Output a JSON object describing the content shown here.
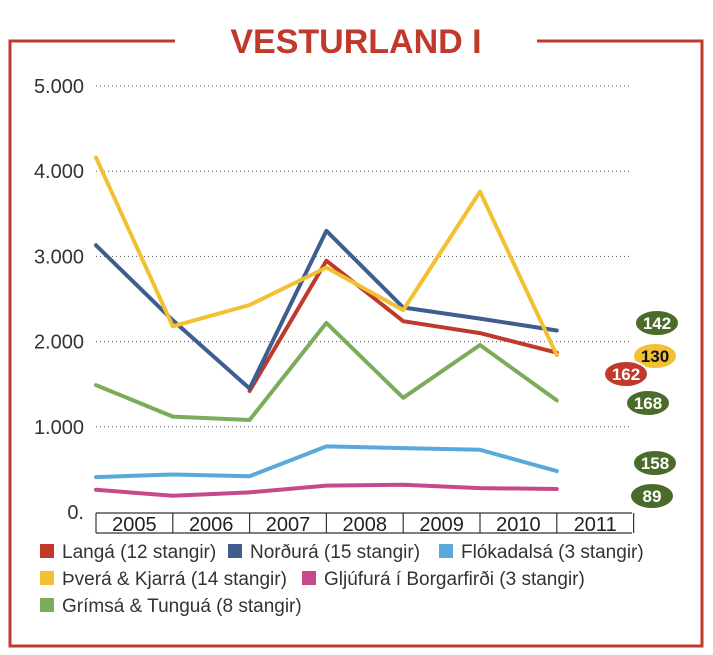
{
  "chart_data": {
    "type": "line",
    "title": "VESTURLAND I",
    "x": [
      "2005",
      "2006",
      "2007",
      "2008",
      "2009",
      "2010",
      "2011"
    ],
    "ylim": [
      0,
      5000
    ],
    "yticks": [
      0,
      1000,
      2000,
      3000,
      4000,
      5000
    ],
    "ytick_labels": [
      "0.",
      "1.000",
      "2.000",
      "3.000",
      "4.000",
      "5.000"
    ],
    "grid": "horizontal dotted",
    "legend_position": "bottom",
    "series": [
      {
        "name": "Langá (12 stangir)",
        "color": "#c0392b",
        "values": [
          null,
          null,
          1420,
          2950,
          2240,
          2100,
          1870
        ]
      },
      {
        "name": "Norðurá (15 stangir)",
        "color": "#3f5d8f",
        "values": [
          3130,
          2250,
          1450,
          3300,
          2400,
          2270,
          2130
        ]
      },
      {
        "name": "Flókadalsá (3 stangir)",
        "color": "#5aa9dc",
        "values": [
          410,
          440,
          420,
          770,
          750,
          730,
          480
        ]
      },
      {
        "name": "Þverá & Kjarrá (14 stangir)",
        "color": "#f2c033",
        "values": [
          4160,
          2180,
          2430,
          2870,
          2370,
          3760,
          1840
        ]
      },
      {
        "name": "Gljúfurá í Borgarfirði (3 stangir)",
        "color": "#c8498b",
        "values": [
          260,
          190,
          230,
          310,
          320,
          280,
          270
        ]
      },
      {
        "name": "Grímsá & Tunguá (8 stangir)",
        "color": "#7aac5a",
        "values": [
          1490,
          1120,
          1080,
          2220,
          1340,
          1960,
          1310
        ]
      }
    ],
    "annotations": [
      {
        "text": "142",
        "fill": "#4a6b2a",
        "text_color": "#ffffff"
      },
      {
        "text": "130",
        "fill": "#f2c033",
        "text_color": "#111111"
      },
      {
        "text": "162",
        "fill": "#c0392b",
        "text_color": "#ffffff"
      },
      {
        "text": "168",
        "fill": "#4a6b2a",
        "text_color": "#ffffff"
      },
      {
        "text": "158",
        "fill": "#4a6b2a",
        "text_color": "#ffffff"
      },
      {
        "text": "89",
        "fill": "#4a6b2a",
        "text_color": "#ffffff"
      }
    ]
  },
  "colors": {
    "frame": "#c0392b",
    "title": "#c0392b",
    "grid": "#555555"
  }
}
